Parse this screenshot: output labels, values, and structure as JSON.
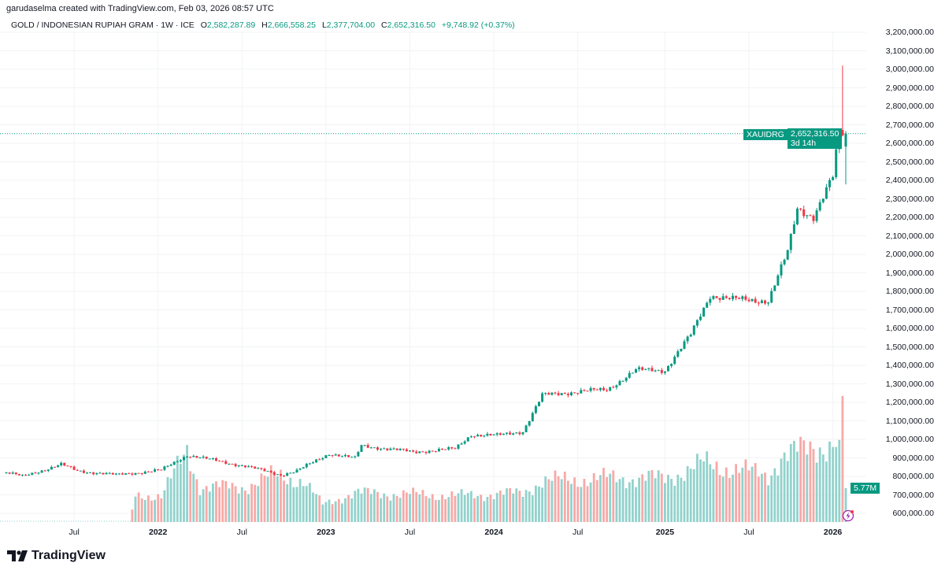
{
  "credit": "garudaselma created with TradingView.com, Feb 03, 2026 08:57 UTC",
  "legend": {
    "symbol": "GOLD / INDONESIAN RUPIAH GRAM · 1W · ICE",
    "o_label": "O",
    "o": "2,582,287.89",
    "h_label": "H",
    "h": "2,666,558.25",
    "l_label": "L",
    "l": "2,377,704.00",
    "c_label": "C",
    "c": "2,652,316.50",
    "change": "+9,748.92 (+0.37%)"
  },
  "price_tag": {
    "symbol": "XAUIDRG",
    "price": "2,652,316.50",
    "countdown": "3d 14h"
  },
  "volume_tag": "5.77M",
  "brand": "TradingView",
  "colors": {
    "up": "#089981",
    "down": "#f23645",
    "vol_up": "#92d2cc",
    "vol_down": "#f7a9a7"
  },
  "chart_data": {
    "type": "candlestick",
    "title": "GOLD / INDONESIAN RUPIAH GRAM · 1W · ICE",
    "ylim": [
      550000,
      3250000
    ],
    "y_ticks": [
      "3,200,000.00",
      "3,100,000.00",
      "3,000,000.00",
      "2,900,000.00",
      "2,800,000.00",
      "2,700,000.00",
      "2,600,000.00",
      "2,500,000.00",
      "2,400,000.00",
      "2,300,000.00",
      "2,200,000.00",
      "2,100,000.00",
      "2,000,000.00",
      "1,900,000.00",
      "1,800,000.00",
      "1,700,000.00",
      "1,600,000.00",
      "1,500,000.00",
      "1,400,000.00",
      "1,300,000.00",
      "1,200,000.00",
      "1,100,000.00",
      "1,000,000.00",
      "900,000.00",
      "800,000.00",
      "700,000.00",
      "600,000.00"
    ],
    "x_ticks": [
      {
        "label": "Jul",
        "week": 21,
        "year": false
      },
      {
        "label": "2022",
        "week": 47,
        "year": true
      },
      {
        "label": "Jul",
        "week": 73,
        "year": false
      },
      {
        "label": "2023",
        "week": 99,
        "year": true
      },
      {
        "label": "Jul",
        "week": 125,
        "year": false
      },
      {
        "label": "2024",
        "week": 151,
        "year": true
      },
      {
        "label": "Jul",
        "week": 177,
        "year": false
      },
      {
        "label": "2025",
        "week": 204,
        "year": true
      },
      {
        "label": "Jul",
        "week": 230,
        "year": false
      },
      {
        "label": "2026",
        "week": 256,
        "year": true
      }
    ],
    "weeks": 261,
    "close_anchors": [
      [
        0,
        821000
      ],
      [
        5,
        800000
      ],
      [
        17,
        864000
      ],
      [
        22,
        830000
      ],
      [
        34,
        808000
      ],
      [
        48,
        834000
      ],
      [
        56,
        915000
      ],
      [
        61,
        898000
      ],
      [
        74,
        855000
      ],
      [
        85,
        808000
      ],
      [
        90,
        830000
      ],
      [
        100,
        923000
      ],
      [
        108,
        898000
      ],
      [
        110,
        966000
      ],
      [
        126,
        932000
      ],
      [
        139,
        949000
      ],
      [
        144,
        1025000
      ],
      [
        152,
        1021000
      ],
      [
        160,
        1043000
      ],
      [
        166,
        1238000
      ],
      [
        178,
        1260000
      ],
      [
        186,
        1268000
      ],
      [
        195,
        1374000
      ],
      [
        204,
        1374000
      ],
      [
        212,
        1566000
      ],
      [
        218,
        1779000
      ],
      [
        225,
        1757000
      ],
      [
        236,
        1749000
      ],
      [
        242,
        2013000
      ],
      [
        245,
        2247000
      ],
      [
        250,
        2204000
      ],
      [
        256,
        2417000
      ],
      [
        258,
        2672000
      ],
      [
        259,
        2642568
      ],
      [
        260,
        2652316
      ]
    ],
    "volume_anchors_M": [
      [
        39,
        2
      ],
      [
        40,
        4.5
      ],
      [
        48,
        4.5
      ],
      [
        56,
        12
      ],
      [
        60,
        6
      ],
      [
        74,
        6
      ],
      [
        83,
        8
      ],
      [
        92,
        7
      ],
      [
        98,
        3
      ],
      [
        108,
        5
      ],
      [
        140,
        4.5
      ],
      [
        160,
        5
      ],
      [
        166,
        7
      ],
      [
        186,
        7.5
      ],
      [
        204,
        7.5
      ],
      [
        212,
        9
      ],
      [
        216,
        10
      ],
      [
        236,
        8
      ],
      [
        240,
        11
      ],
      [
        250,
        13
      ],
      [
        256,
        13
      ],
      [
        258,
        14
      ],
      [
        259,
        21.5
      ],
      [
        260,
        5.77
      ]
    ],
    "last_candle": {
      "open": 2582287.89,
      "high": 2666558.25,
      "low": 2377704.0,
      "close": 2652316.5
    },
    "prev_high": 3020000
  }
}
